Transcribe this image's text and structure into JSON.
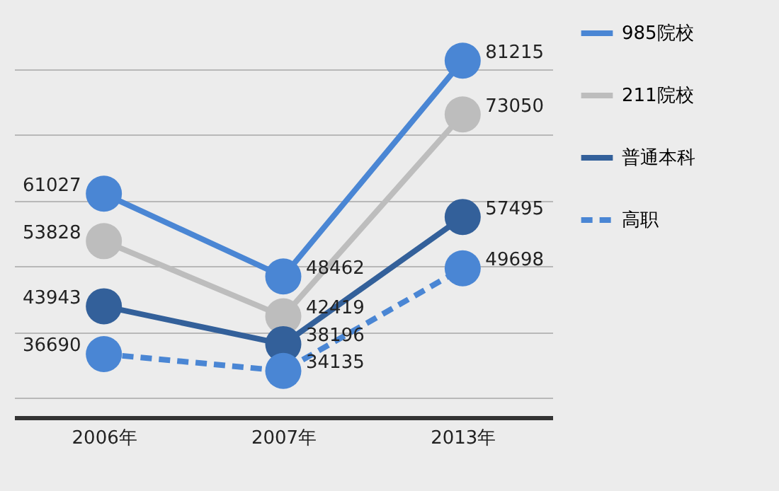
{
  "chart_data": {
    "type": "line",
    "categories": [
      "2006年",
      "2007年",
      "2013年"
    ],
    "series": [
      {
        "name": "985院校",
        "color": "#4a86d4",
        "values": [
          61027,
          48462,
          81215
        ]
      },
      {
        "name": "211院校",
        "color": "#bdbdbd",
        "values": [
          53828,
          42419,
          73050
        ]
      },
      {
        "name": "普通本科",
        "color": "#33609a",
        "values": [
          43943,
          38196,
          57495
        ]
      },
      {
        "name": "高职",
        "color": "#4a86d4",
        "values": [
          36690,
          34135,
          49698
        ],
        "line_style": "dashed"
      }
    ],
    "data_labels": true,
    "grid": "y",
    "tick_labels": "x",
    "legend": "right",
    "marker": "circle",
    "line_style": "solid"
  }
}
